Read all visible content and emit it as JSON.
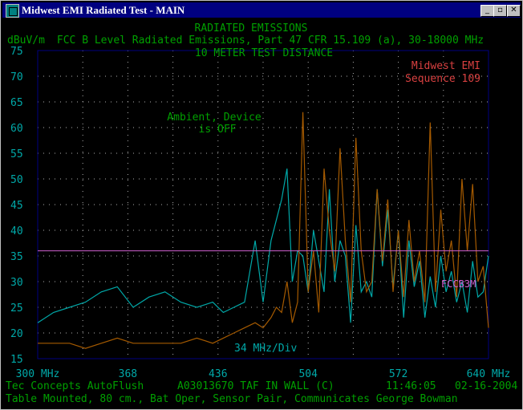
{
  "window": {
    "title": "Midwest EMI Radiated Test - MAIN",
    "minimize_glyph": "_",
    "maximize_glyph": "▫",
    "close_glyph": "✕",
    "app_icon": "app-icon"
  },
  "colors": {
    "title_green": "#00a000",
    "grid": "#b0b0b0",
    "ambient": "#a55a00",
    "device": "#00a8a8",
    "limit": "#d060d0",
    "company": "#d84040",
    "footer": "#00a000",
    "freq_label": "#00a8a8"
  },
  "header": {
    "line1": "RADIATED EMISSIONS",
    "line2": "FCC B Level Radiated Emissions, Part 47 CFR 15.109 (a), 30-18000 MHz",
    "line3": "10 METER TEST DISTANCE",
    "unit": "dBuV/m"
  },
  "annotations": {
    "company": "Midwest EMI",
    "sequence": "Sequence 109",
    "ambient_line1": "Ambient, Device",
    "ambient_line2": "is OFF",
    "limit_label": "FCCB3M",
    "div_label": "34 MHz/Div"
  },
  "footer": {
    "line1_left": "Tec Concepts AutoFlush",
    "line1_mid": "A03013670 TAF IN WALL (C)",
    "line1_time": "11:46:05",
    "line1_date": "02-16-2004",
    "line2": "Table Mounted, 80 cm., Bat Oper, Sensor Pair, Communicates George Bowman"
  },
  "chart_data": {
    "type": "line",
    "ylim": [
      15,
      75
    ],
    "y_ticks": [
      "75",
      "70",
      "65",
      "60",
      "55",
      "50",
      "45",
      "40",
      "35",
      "30",
      "25",
      "20",
      "15"
    ],
    "xlim": [
      300,
      640
    ],
    "x_tick_values": [
      300,
      368,
      436,
      504,
      572,
      640
    ],
    "x_tick_labels": [
      "300 MHz",
      "368",
      "436",
      "504",
      "572",
      "640 MHz"
    ],
    "limit_level": 36,
    "series": [
      {
        "key": "device",
        "x": [
          300,
          312,
          324,
          336,
          348,
          360,
          372,
          384,
          396,
          408,
          420,
          432,
          440,
          448,
          456,
          464,
          470,
          476,
          480,
          484,
          488,
          492,
          496,
          500,
          504,
          508,
          512,
          516,
          520,
          524,
          528,
          532,
          536,
          540,
          544,
          548,
          552,
          556,
          560,
          564,
          568,
          572,
          576,
          580,
          584,
          588,
          592,
          596,
          600,
          604,
          608,
          612,
          616,
          620,
          624,
          628,
          632,
          636,
          640
        ],
        "y": [
          22,
          24,
          25,
          26,
          28,
          29,
          25,
          27,
          28,
          26,
          25,
          26,
          24,
          25,
          26,
          38,
          26,
          38,
          42,
          46,
          52,
          30,
          36,
          35,
          28,
          40,
          34,
          28,
          48,
          30,
          38,
          35,
          22,
          41,
          28,
          30,
          27,
          48,
          33,
          44,
          29,
          40,
          23,
          38,
          29,
          34,
          23,
          31,
          25,
          35,
          28,
          32,
          26,
          30,
          24,
          34,
          27,
          28,
          35
        ]
      },
      {
        "key": "ambient",
        "x": [
          300,
          312,
          324,
          336,
          348,
          360,
          372,
          384,
          396,
          408,
          420,
          432,
          440,
          448,
          456,
          464,
          470,
          476,
          480,
          484,
          488,
          492,
          496,
          500,
          504,
          508,
          512,
          516,
          520,
          524,
          528,
          532,
          536,
          540,
          544,
          548,
          552,
          556,
          560,
          564,
          568,
          572,
          576,
          580,
          584,
          588,
          592,
          596,
          600,
          604,
          608,
          612,
          616,
          620,
          624,
          628,
          632,
          636,
          640
        ],
        "y": [
          18,
          18,
          18,
          17,
          18,
          19,
          18,
          18,
          18,
          18,
          19,
          18,
          19,
          20,
          21,
          22,
          21,
          23,
          25,
          24,
          30,
          22,
          26,
          63,
          28,
          36,
          24,
          52,
          40,
          32,
          56,
          38,
          26,
          58,
          36,
          28,
          30,
          48,
          34,
          46,
          28,
          40,
          27,
          42,
          30,
          36,
          26,
          61,
          28,
          44,
          32,
          38,
          27,
          50,
          36,
          49,
          30,
          33,
          21
        ]
      }
    ]
  }
}
